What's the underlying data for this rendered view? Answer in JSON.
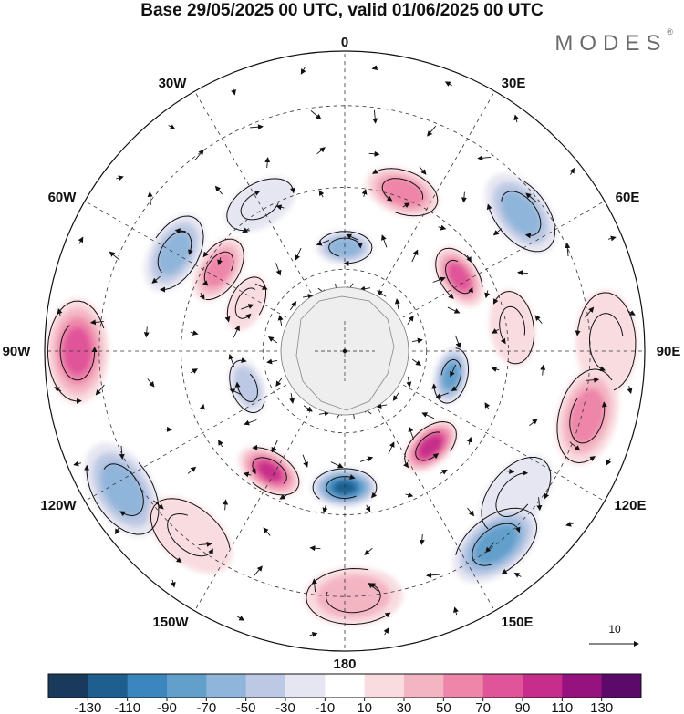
{
  "title": "Base 29/05/2025 00 UTC, valid 01/06/2025 00 UTC",
  "brand": {
    "name": "MODES",
    "mark": "®"
  },
  "longitude_labels": {
    "lon_0": "0",
    "lon_30e": "30E",
    "lon_60e": "60E",
    "lon_90e": "90E",
    "lon_120e": "120E",
    "lon_150e": "150E",
    "lon_180": "180",
    "lon_150w": "150W",
    "lon_120w": "120W",
    "lon_90w": "90W",
    "lon_60w": "60W",
    "lon_30w": "30W"
  },
  "vector_scale": {
    "label": "10"
  },
  "colorbar": {
    "colors": [
      "#1a3a5c",
      "#1f5f8f",
      "#3a86bd",
      "#629fcb",
      "#90b5da",
      "#bdc9e4",
      "#e6e6f2",
      "#ffffff",
      "#f9dce0",
      "#f4b5c3",
      "#ee86aa",
      "#e0559a",
      "#c72d8a",
      "#96127e",
      "#5c0a6a"
    ],
    "ticks": [
      "-130",
      "-110",
      "-90",
      "-70",
      "-50",
      "-30",
      "-10",
      "10",
      "30",
      "50",
      "70",
      "90",
      "110",
      "130"
    ]
  },
  "anomalies": [
    {
      "lon": 20,
      "colat": 62,
      "value": 75
    },
    {
      "lon": 330,
      "colat": 62,
      "value": -25
    },
    {
      "lon": 303,
      "colat": 55,
      "value": 65
    },
    {
      "lon": 0,
      "colat": 38,
      "value": -75
    },
    {
      "lon": 52,
      "colat": 82,
      "value": -65
    },
    {
      "lon": 300,
      "colat": 72,
      "value": -65
    },
    {
      "lon": 57,
      "colat": 50,
      "value": 85
    },
    {
      "lon": 88,
      "colat": 96,
      "value": 20
    },
    {
      "lon": 82,
      "colat": 62,
      "value": 35
    },
    {
      "lon": 270,
      "colat": 98,
      "value": 85
    },
    {
      "lon": 296,
      "colat": 40,
      "value": 30
    },
    {
      "lon": 250,
      "colat": 38,
      "value": -50
    },
    {
      "lon": 103,
      "colat": 40,
      "value": -85
    },
    {
      "lon": 105,
      "colat": 92,
      "value": 65
    },
    {
      "lon": 138,
      "colat": 47,
      "value": 115
    },
    {
      "lon": 212,
      "colat": 52,
      "value": 100
    },
    {
      "lon": 180,
      "colat": 50,
      "value": -125
    },
    {
      "lon": 130,
      "colat": 82,
      "value": -30
    },
    {
      "lon": 142,
      "colat": 90,
      "value": -95
    },
    {
      "lon": 238,
      "colat": 96,
      "value": -70
    },
    {
      "lon": 178,
      "colat": 90,
      "value": 55
    },
    {
      "lon": 220,
      "colat": 88,
      "value": 30
    }
  ]
}
